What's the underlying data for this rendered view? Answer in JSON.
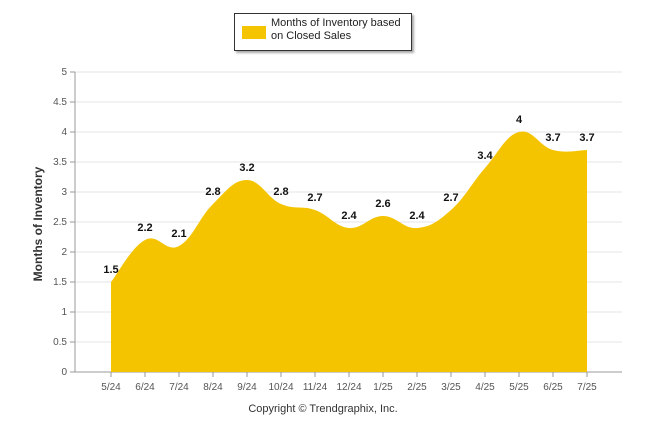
{
  "chart_data": {
    "type": "area",
    "legend": {
      "label": "Months of Inventory based on Closed Sales",
      "placement": "top-center"
    },
    "categories": [
      "5/24",
      "6/24",
      "7/24",
      "8/24",
      "9/24",
      "10/24",
      "11/24",
      "12/24",
      "1/25",
      "2/25",
      "3/25",
      "4/25",
      "5/25",
      "6/25",
      "7/25"
    ],
    "series": [
      {
        "name": "Months of Inventory based on Closed Sales",
        "values": [
          1.5,
          2.2,
          2.1,
          2.8,
          3.2,
          2.8,
          2.7,
          2.4,
          2.6,
          2.4,
          2.7,
          3.4,
          4,
          3.7,
          3.7
        ],
        "color": "#f5c400"
      }
    ],
    "data_labels": [
      "1.5",
      "2.2",
      "2.1",
      "2.8",
      "3.2",
      "2.8",
      "2.7",
      "2.4",
      "2.6",
      "2.4",
      "2.7",
      "3.4",
      "4",
      "3.7",
      "3.7"
    ],
    "ylabel": "Months of Inventory",
    "xlabel": "",
    "ylim": [
      0,
      5
    ],
    "yticks": [
      "0",
      "0.5",
      "1",
      "1.5",
      "2",
      "2.5",
      "3",
      "3.5",
      "4",
      "4.5",
      "5"
    ],
    "grid": true
  },
  "footer": {
    "copyright": "Copyright © Trendgraphix, Inc."
  }
}
